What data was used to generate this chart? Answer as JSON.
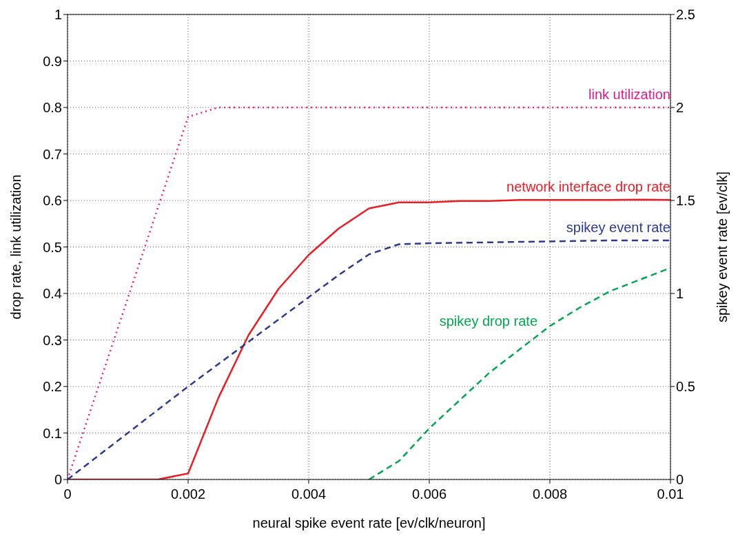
{
  "chart_data": {
    "type": "line",
    "xlabel": "neural spike event rate [ev/clk/neuron]",
    "ylabel": "drop rate, link utilization",
    "y2label": "spikey event rate [ev/clk]",
    "series": [
      {
        "name": "link utilization",
        "color": "#e6198c",
        "line_style": "dotted",
        "x": [
          0,
          0.002,
          0.0025,
          0.003,
          0.004,
          0.005,
          0.006,
          0.007,
          0.008,
          0.009,
          0.01
        ],
        "values": [
          0,
          0.78,
          0.8,
          0.8,
          0.8,
          0.8,
          0.8,
          0.8,
          0.8,
          0.8,
          0.8
        ]
      },
      {
        "name": "network interface drop rate",
        "color": "#ec1c24",
        "line_style": "solid",
        "x": [
          0,
          0.0015,
          0.002,
          0.0025,
          0.003,
          0.0035,
          0.004,
          0.0045,
          0.005,
          0.0055,
          0.006,
          0.0065,
          0.007,
          0.0075,
          0.008,
          0.0085,
          0.009,
          0.0095,
          0.01
        ],
        "values": [
          0,
          0,
          0.013,
          0.175,
          0.31,
          0.41,
          0.483,
          0.54,
          0.583,
          0.596,
          0.596,
          0.599,
          0.599,
          0.601,
          0.601,
          0.601,
          0.601,
          0.602,
          0.601
        ]
      },
      {
        "name": "spikey event rate",
        "color": "#2b3990",
        "line_style": "dashed",
        "axis": "y2",
        "x": [
          0,
          0.001,
          0.002,
          0.003,
          0.004,
          0.0045,
          0.005,
          0.0055,
          0.006,
          0.007,
          0.008,
          0.009,
          0.01
        ],
        "values": [
          0,
          0.25,
          0.5,
          0.74,
          0.98,
          1.1,
          1.21,
          1.265,
          1.27,
          1.275,
          1.28,
          1.285,
          1.285
        ]
      },
      {
        "name": "spikey drop rate",
        "color": "#00a651",
        "line_style": "dashed",
        "x": [
          0.005,
          0.0055,
          0.006,
          0.0065,
          0.007,
          0.0075,
          0.008,
          0.0085,
          0.009,
          0.0095,
          0.01
        ],
        "values": [
          0,
          0.04,
          0.11,
          0.17,
          0.23,
          0.28,
          0.33,
          0.37,
          0.405,
          0.43,
          0.455
        ]
      }
    ],
    "xlim": [
      0,
      0.01
    ],
    "xticks": [
      0,
      0.002,
      0.004,
      0.006,
      0.008,
      0.01
    ],
    "ylim": [
      0,
      1
    ],
    "yticks": [
      0,
      0.1,
      0.2,
      0.3,
      0.4,
      0.5,
      0.6,
      0.7,
      0.8,
      0.9,
      1
    ],
    "y2lim": [
      0,
      2.5
    ],
    "y2ticks": [
      0,
      0.5,
      1,
      1.5,
      2,
      2.5
    ],
    "grid": true,
    "legend": false,
    "marker": "none"
  }
}
